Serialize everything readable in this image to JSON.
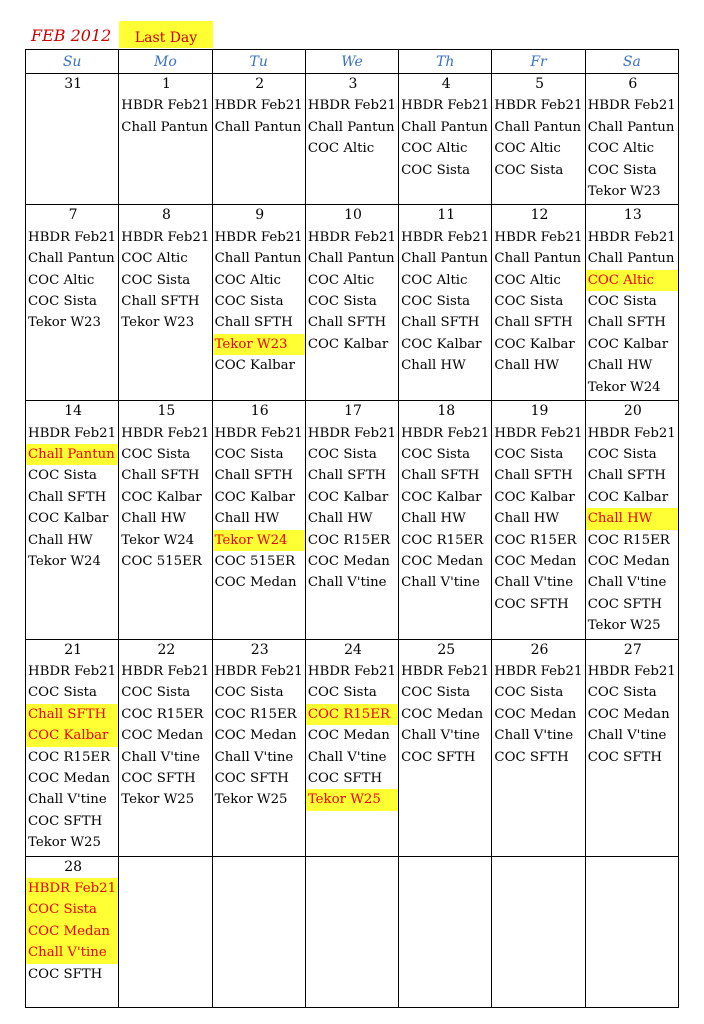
{
  "header": {
    "title": "FEB 2012",
    "legend": "Last Day"
  },
  "weekdays": [
    "Su",
    "Mo",
    "Tu",
    "We",
    "Th",
    "Fr",
    "Sa"
  ],
  "weeks": [
    [
      {
        "day": 31,
        "items": []
      },
      {
        "day": 1,
        "items": [
          "HBDR Feb21",
          "Chall Pantun"
        ]
      },
      {
        "day": 2,
        "items": [
          "HBDR Feb21",
          "Chall Pantun"
        ]
      },
      {
        "day": 3,
        "items": [
          "HBDR Feb21",
          "Chall Pantun",
          "COC Altic"
        ]
      },
      {
        "day": 4,
        "items": [
          "HBDR Feb21",
          "Chall Pantun",
          "COC Altic",
          "COC Sista"
        ]
      },
      {
        "day": 5,
        "items": [
          "HBDR Feb21",
          "Chall Pantun",
          "COC Altic",
          "COC Sista"
        ]
      },
      {
        "day": 6,
        "items": [
          "HBDR Feb21",
          "Chall Pantun",
          "COC Altic",
          "COC Sista",
          "Tekor W23"
        ]
      }
    ],
    [
      {
        "day": 7,
        "items": [
          "HBDR Feb21",
          "Chall Pantun",
          "COC Altic",
          "COC Sista",
          "Tekor W23"
        ]
      },
      {
        "day": 8,
        "items": [
          "HBDR Feb21",
          "COC Altic",
          "COC Sista",
          "Chall SFTH",
          "Tekor W23"
        ]
      },
      {
        "day": 9,
        "items": [
          "HBDR Feb21",
          "Chall Pantun",
          "COC Altic",
          "COC Sista",
          "Chall SFTH",
          {
            "text": "Tekor W23",
            "highlight": true
          },
          "COC Kalbar"
        ]
      },
      {
        "day": 10,
        "items": [
          "HBDR Feb21",
          "Chall Pantun",
          "COC Altic",
          "COC Sista",
          "Chall SFTH",
          "COC Kalbar"
        ]
      },
      {
        "day": 11,
        "items": [
          "HBDR Feb21",
          "Chall Pantun",
          "COC Altic",
          "COC Sista",
          "Chall SFTH",
          "COC Kalbar",
          "Chall HW"
        ]
      },
      {
        "day": 12,
        "items": [
          "HBDR Feb21",
          "Chall Pantun",
          "COC Altic",
          "COC Sista",
          "Chall SFTH",
          "COC Kalbar",
          "Chall HW"
        ]
      },
      {
        "day": 13,
        "items": [
          "HBDR Feb21",
          "Chall Pantun",
          {
            "text": "COC Altic",
            "highlight": true
          },
          "COC Sista",
          "Chall SFTH",
          "COC Kalbar",
          "Chall HW",
          "Tekor W24"
        ]
      }
    ],
    [
      {
        "day": 14,
        "items": [
          "HBDR Feb21",
          {
            "text": "Chall Pantun",
            "highlight": true
          },
          "COC Sista",
          "Chall SFTH",
          "COC Kalbar",
          "Chall HW",
          "Tekor W24"
        ]
      },
      {
        "day": 15,
        "items": [
          "HBDR Feb21",
          "COC Sista",
          "Chall SFTH",
          "COC Kalbar",
          "Chall HW",
          "Tekor W24",
          "COC 515ER"
        ]
      },
      {
        "day": 16,
        "items": [
          "HBDR Feb21",
          "COC Sista",
          "Chall SFTH",
          "COC Kalbar",
          "Chall HW",
          {
            "text": "Tekor W24",
            "highlight": true
          },
          "COC 515ER",
          "COC Medan"
        ]
      },
      {
        "day": 17,
        "items": [
          "HBDR Feb21",
          "COC Sista",
          "Chall SFTH",
          "COC Kalbar",
          "Chall HW",
          "COC R15ER",
          "COC Medan",
          "Chall V'tine"
        ]
      },
      {
        "day": 18,
        "items": [
          "HBDR Feb21",
          "COC Sista",
          "Chall SFTH",
          "COC Kalbar",
          "Chall HW",
          "COC R15ER",
          "COC Medan",
          "Chall V'tine"
        ]
      },
      {
        "day": 19,
        "items": [
          "HBDR Feb21",
          "COC Sista",
          "Chall SFTH",
          "COC Kalbar",
          "Chall HW",
          "COC R15ER",
          "COC Medan",
          "Chall V'tine",
          "COC SFTH"
        ]
      },
      {
        "day": 20,
        "items": [
          "HBDR Feb21",
          "COC Sista",
          "Chall SFTH",
          "COC Kalbar",
          {
            "text": "Chall HW",
            "highlight": true
          },
          "COC R15ER",
          "COC Medan",
          "Chall V'tine",
          "COC SFTH",
          "Tekor W25"
        ]
      }
    ],
    [
      {
        "day": 21,
        "items": [
          "HBDR Feb21",
          "COC Sista",
          {
            "text": "Chall SFTH",
            "highlight": true
          },
          {
            "text": "COC Kalbar",
            "highlight": true
          },
          "COC R15ER",
          "COC Medan",
          "Chall V'tine",
          "COC SFTH",
          "Tekor W25"
        ]
      },
      {
        "day": 22,
        "items": [
          "HBDR Feb21",
          "COC Sista",
          "COC R15ER",
          "COC Medan",
          "Chall V'tine",
          "COC SFTH",
          "Tekor W25"
        ]
      },
      {
        "day": 23,
        "items": [
          "HBDR Feb21",
          "COC Sista",
          "COC R15ER",
          "COC Medan",
          "Chall V'tine",
          "COC SFTH",
          "Tekor W25"
        ]
      },
      {
        "day": 24,
        "items": [
          "HBDR Feb21",
          "COC Sista",
          {
            "text": "COC R15ER",
            "highlight": true
          },
          "COC Medan",
          "Chall V'tine",
          "COC SFTH",
          {
            "text": "Tekor W25",
            "highlight": true
          }
        ]
      },
      {
        "day": 25,
        "items": [
          "HBDR Feb21",
          "COC Sista",
          "COC Medan",
          "Chall V'tine",
          "COC SFTH"
        ]
      },
      {
        "day": 26,
        "items": [
          "HBDR Feb21",
          "COC Sista",
          "COC Medan",
          "Chall V'tine",
          "COC SFTH"
        ]
      },
      {
        "day": 27,
        "items": [
          "HBDR Feb21",
          "COC Sista",
          "COC Medan",
          "Chall V'tine",
          "COC SFTH"
        ]
      }
    ],
    [
      {
        "day": 28,
        "items": [
          {
            "text": "HBDR Feb21",
            "highlight": true
          },
          {
            "text": "COC Sista",
            "highlight": true
          },
          {
            "text": "COC Medan",
            "highlight": true
          },
          {
            "text": "Chall V'tine",
            "highlight": true
          },
          "COC SFTH"
        ]
      }
    ]
  ]
}
